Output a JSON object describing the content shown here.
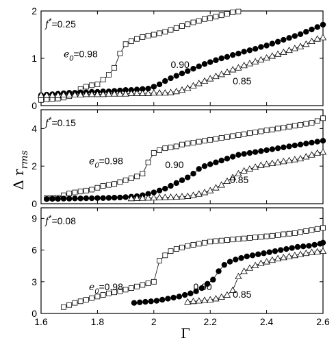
{
  "chart_data": {
    "type": "line",
    "xlabel": "Γ",
    "ylabel": "Δ r",
    "ylabel_sub": "rms",
    "x_ticks": [
      "1.6",
      "1.8",
      "2",
      "2.2",
      "2.4",
      "2.6"
    ],
    "panels": [
      {
        "label_f": "f",
        "label_rest": "=0.25",
        "xlim": [
          1.6,
          2.6
        ],
        "ylim": [
          0,
          2
        ],
        "y_ticks": [
          0,
          1,
          2
        ],
        "annotations": [
          {
            "text_e": "e",
            "text_sub": "0",
            "text_rest": "=0.98",
            "x": 1.68,
            "y": 1.02
          },
          {
            "text": "0.90",
            "x": 2.06,
            "y": 0.8
          },
          {
            "text": "0.85",
            "x": 2.28,
            "y": 0.45
          }
        ],
        "series": [
          {
            "marker": "square",
            "x": [
              1.6,
              1.62,
              1.64,
              1.66,
              1.68,
              1.7,
              1.72,
              1.74,
              1.76,
              1.78,
              1.8,
              1.82,
              1.84,
              1.86,
              1.88,
              1.9,
              1.92,
              1.94,
              1.96,
              1.98,
              2.0,
              2.02,
              2.04,
              2.06,
              2.08,
              2.1,
              2.12,
              2.14,
              2.16,
              2.18,
              2.2,
              2.22,
              2.24,
              2.26,
              2.28,
              2.3
            ],
            "y": [
              0.12,
              0.13,
              0.14,
              0.15,
              0.17,
              0.2,
              0.25,
              0.35,
              0.4,
              0.43,
              0.45,
              0.55,
              0.65,
              0.8,
              1.1,
              1.3,
              1.36,
              1.41,
              1.45,
              1.48,
              1.5,
              1.53,
              1.56,
              1.6,
              1.64,
              1.68,
              1.72,
              1.76,
              1.79,
              1.83,
              1.85,
              1.88,
              1.91,
              1.94,
              1.97,
              1.99
            ]
          },
          {
            "marker": "circle",
            "x": [
              1.6,
              1.62,
              1.64,
              1.66,
              1.68,
              1.7,
              1.72,
              1.74,
              1.76,
              1.78,
              1.8,
              1.82,
              1.84,
              1.86,
              1.88,
              1.9,
              1.92,
              1.94,
              1.96,
              1.98,
              2.0,
              2.02,
              2.04,
              2.06,
              2.08,
              2.1,
              2.12,
              2.14,
              2.16,
              2.18,
              2.2,
              2.22,
              2.24,
              2.26,
              2.28,
              2.3,
              2.32,
              2.34,
              2.36,
              2.38,
              2.4,
              2.42,
              2.44,
              2.46,
              2.48,
              2.5,
              2.52,
              2.54,
              2.56,
              2.58,
              2.6
            ],
            "y": [
              0.22,
              0.23,
              0.24,
              0.25,
              0.26,
              0.27,
              0.27,
              0.28,
              0.28,
              0.29,
              0.29,
              0.3,
              0.3,
              0.31,
              0.32,
              0.33,
              0.33,
              0.34,
              0.35,
              0.36,
              0.4,
              0.45,
              0.52,
              0.58,
              0.63,
              0.68,
              0.73,
              0.78,
              0.83,
              0.88,
              0.92,
              0.96,
              1.0,
              1.03,
              1.07,
              1.1,
              1.14,
              1.17,
              1.2,
              1.24,
              1.27,
              1.31,
              1.35,
              1.39,
              1.43,
              1.47,
              1.51,
              1.56,
              1.61,
              1.66,
              1.71
            ]
          },
          {
            "marker": "triangle",
            "x": [
              1.6,
              1.62,
              1.64,
              1.66,
              1.68,
              1.7,
              1.72,
              1.74,
              1.76,
              1.78,
              1.8,
              1.82,
              1.84,
              1.86,
              1.88,
              1.9,
              1.92,
              1.94,
              1.96,
              1.98,
              2.0,
              2.02,
              2.04,
              2.06,
              2.08,
              2.1,
              2.12,
              2.14,
              2.16,
              2.18,
              2.2,
              2.22,
              2.24,
              2.26,
              2.28,
              2.3,
              2.32,
              2.34,
              2.36,
              2.38,
              2.4,
              2.42,
              2.44,
              2.46,
              2.48,
              2.5,
              2.52,
              2.54,
              2.56,
              2.58,
              2.6
            ],
            "y": [
              0.22,
              0.22,
              0.22,
              0.22,
              0.23,
              0.23,
              0.23,
              0.23,
              0.24,
              0.24,
              0.24,
              0.24,
              0.25,
              0.25,
              0.25,
              0.25,
              0.26,
              0.26,
              0.26,
              0.26,
              0.27,
              0.27,
              0.27,
              0.28,
              0.3,
              0.33,
              0.37,
              0.42,
              0.47,
              0.52,
              0.57,
              0.62,
              0.66,
              0.71,
              0.76,
              0.8,
              0.85,
              0.89,
              0.93,
              0.97,
              1.01,
              1.05,
              1.09,
              1.13,
              1.17,
              1.21,
              1.25,
              1.3,
              1.36,
              1.41,
              1.44
            ]
          }
        ]
      },
      {
        "label_f": "f",
        "label_rest": "=0.15",
        "xlim": [
          1.6,
          2.6
        ],
        "ylim": [
          0,
          5
        ],
        "y_ticks": [
          0,
          2,
          4
        ],
        "annotations": [
          {
            "text_e": "e",
            "text_sub": "0",
            "text_rest": "=0.98",
            "x": 1.77,
            "y": 2.1
          },
          {
            "text": "0.90",
            "x": 2.04,
            "y": 1.9
          },
          {
            "text": "0.85",
            "x": 2.27,
            "y": 1.1
          }
        ],
        "series": [
          {
            "marker": "square",
            "x": [
              1.62,
              1.64,
              1.66,
              1.68,
              1.7,
              1.72,
              1.74,
              1.76,
              1.78,
              1.8,
              1.82,
              1.84,
              1.86,
              1.88,
              1.9,
              1.92,
              1.94,
              1.96,
              1.98,
              2.0,
              2.02,
              2.04,
              2.06,
              2.08,
              2.1,
              2.12,
              2.14,
              2.16,
              2.18,
              2.2,
              2.22,
              2.24,
              2.26,
              2.28,
              2.3,
              2.32,
              2.34,
              2.36,
              2.38,
              2.4,
              2.42,
              2.44,
              2.46,
              2.48,
              2.5,
              2.52,
              2.54,
              2.56,
              2.58,
              2.6
            ],
            "y": [
              0.3,
              0.3,
              0.32,
              0.45,
              0.55,
              0.6,
              0.65,
              0.7,
              0.75,
              0.85,
              0.95,
              1.0,
              1.05,
              1.15,
              1.25,
              1.35,
              1.45,
              1.6,
              2.2,
              2.7,
              2.85,
              2.95,
              3.0,
              3.05,
              3.15,
              3.2,
              3.25,
              3.3,
              3.35,
              3.4,
              3.45,
              3.5,
              3.55,
              3.6,
              3.65,
              3.7,
              3.75,
              3.8,
              3.85,
              3.9,
              3.95,
              4.0,
              4.05,
              4.1,
              4.15,
              4.2,
              4.25,
              4.3,
              4.4,
              4.55
            ]
          },
          {
            "marker": "circle",
            "x": [
              1.62,
              1.64,
              1.66,
              1.68,
              1.7,
              1.72,
              1.74,
              1.76,
              1.78,
              1.8,
              1.82,
              1.84,
              1.86,
              1.88,
              1.9,
              1.92,
              1.94,
              1.96,
              1.98,
              2.0,
              2.02,
              2.04,
              2.06,
              2.08,
              2.1,
              2.12,
              2.14,
              2.16,
              2.18,
              2.2,
              2.22,
              2.24,
              2.26,
              2.28,
              2.3,
              2.32,
              2.34,
              2.36,
              2.38,
              2.4,
              2.42,
              2.44,
              2.46,
              2.48,
              2.5,
              2.52,
              2.54,
              2.56,
              2.58,
              2.6
            ],
            "y": [
              0.25,
              0.26,
              0.26,
              0.27,
              0.27,
              0.28,
              0.28,
              0.29,
              0.29,
              0.3,
              0.3,
              0.31,
              0.32,
              0.33,
              0.35,
              0.37,
              0.4,
              0.45,
              0.52,
              0.6,
              0.7,
              0.8,
              0.95,
              1.1,
              1.25,
              1.4,
              1.6,
              1.85,
              2.0,
              2.1,
              2.2,
              2.3,
              2.4,
              2.5,
              2.6,
              2.65,
              2.7,
              2.75,
              2.8,
              2.85,
              2.9,
              2.95,
              3.0,
              3.05,
              3.1,
              3.15,
              3.2,
              3.25,
              3.3,
              3.35
            ]
          },
          {
            "marker": "triangle",
            "x": [
              1.92,
              1.94,
              1.96,
              1.98,
              2.0,
              2.02,
              2.04,
              2.06,
              2.08,
              2.1,
              2.12,
              2.14,
              2.16,
              2.18,
              2.2,
              2.22,
              2.24,
              2.26,
              2.28,
              2.3,
              2.32,
              2.34,
              2.36,
              2.38,
              2.4,
              2.42,
              2.44,
              2.46,
              2.48,
              2.5,
              2.52,
              2.54,
              2.56,
              2.58,
              2.6
            ],
            "y": [
              0.28,
              0.29,
              0.3,
              0.31,
              0.32,
              0.33,
              0.34,
              0.35,
              0.36,
              0.38,
              0.4,
              0.45,
              0.52,
              0.6,
              0.7,
              0.85,
              1.0,
              1.2,
              1.4,
              1.6,
              1.75,
              1.85,
              1.95,
              2.05,
              2.1,
              2.15,
              2.2,
              2.25,
              2.3,
              2.35,
              2.4,
              2.5,
              2.6,
              2.7,
              2.75
            ]
          }
        ]
      },
      {
        "label_f": "f",
        "label_rest": "=0.08",
        "xlim": [
          1.6,
          2.6
        ],
        "ylim": [
          0,
          10
        ],
        "y_ticks": [
          0,
          3,
          6,
          9
        ],
        "annotations": [
          {
            "text_e": "e",
            "text_sub": "0",
            "text_rest": "=0.98",
            "x": 1.77,
            "y": 2.2
          },
          {
            "text": "0.90",
            "x": 2.14,
            "y": 2.2
          },
          {
            "text": "0.85",
            "x": 2.28,
            "y": 1.5
          }
        ],
        "series": [
          {
            "marker": "square",
            "x": [
              1.68,
              1.7,
              1.72,
              1.74,
              1.76,
              1.78,
              1.8,
              1.82,
              1.84,
              1.86,
              1.88,
              1.9,
              1.92,
              1.94,
              1.96,
              1.98,
              2.0,
              2.02,
              2.04,
              2.06,
              2.08,
              2.1,
              2.12,
              2.14,
              2.16,
              2.18,
              2.2,
              2.22,
              2.24,
              2.26,
              2.28,
              2.3,
              2.32,
              2.34,
              2.36,
              2.38,
              2.4,
              2.42,
              2.44,
              2.46,
              2.48,
              2.5,
              2.52,
              2.54,
              2.56,
              2.58,
              2.6
            ],
            "y": [
              0.6,
              0.8,
              1.0,
              1.15,
              1.3,
              1.45,
              1.6,
              1.75,
              1.9,
              2.0,
              2.1,
              2.25,
              2.4,
              2.55,
              2.7,
              2.85,
              3.0,
              5.0,
              5.5,
              5.9,
              6.1,
              6.25,
              6.4,
              6.5,
              6.6,
              6.7,
              6.8,
              6.85,
              6.9,
              6.95,
              7.0,
              7.05,
              7.1,
              7.15,
              7.2,
              7.25,
              7.3,
              7.35,
              7.4,
              7.5,
              7.55,
              7.6,
              7.7,
              7.8,
              7.9,
              8.0,
              8.1
            ]
          },
          {
            "marker": "circle",
            "x": [
              1.93,
              1.95,
              1.97,
              1.99,
              2.01,
              2.03,
              2.05,
              2.07,
              2.09,
              2.11,
              2.13,
              2.15,
              2.17,
              2.19,
              2.21,
              2.23,
              2.25,
              2.27,
              2.29,
              2.31,
              2.33,
              2.35,
              2.37,
              2.39,
              2.41,
              2.43,
              2.45,
              2.47,
              2.49,
              2.51,
              2.53,
              2.55,
              2.57,
              2.59,
              2.6
            ],
            "y": [
              1.0,
              1.05,
              1.1,
              1.15,
              1.2,
              1.3,
              1.4,
              1.5,
              1.6,
              1.75,
              1.9,
              2.1,
              2.4,
              2.8,
              3.2,
              4.0,
              4.6,
              4.9,
              5.1,
              5.25,
              5.4,
              5.5,
              5.6,
              5.7,
              5.8,
              5.9,
              6.0,
              6.1,
              6.2,
              6.3,
              6.35,
              6.4,
              6.5,
              6.6,
              6.7
            ]
          },
          {
            "marker": "triangle",
            "x": [
              2.12,
              2.14,
              2.16,
              2.18,
              2.2,
              2.22,
              2.24,
              2.26,
              2.28,
              2.3,
              2.32,
              2.34,
              2.36,
              2.38,
              2.4,
              2.42,
              2.44,
              2.46,
              2.48,
              2.5,
              2.52,
              2.54,
              2.56,
              2.58,
              2.6
            ],
            "y": [
              1.1,
              1.15,
              1.2,
              1.25,
              1.3,
              1.4,
              1.55,
              1.75,
              2.2,
              3.5,
              4.0,
              4.3,
              4.55,
              4.75,
              4.9,
              5.05,
              5.2,
              5.3,
              5.4,
              5.5,
              5.6,
              5.7,
              5.8,
              5.85,
              5.9
            ]
          }
        ]
      }
    ]
  }
}
